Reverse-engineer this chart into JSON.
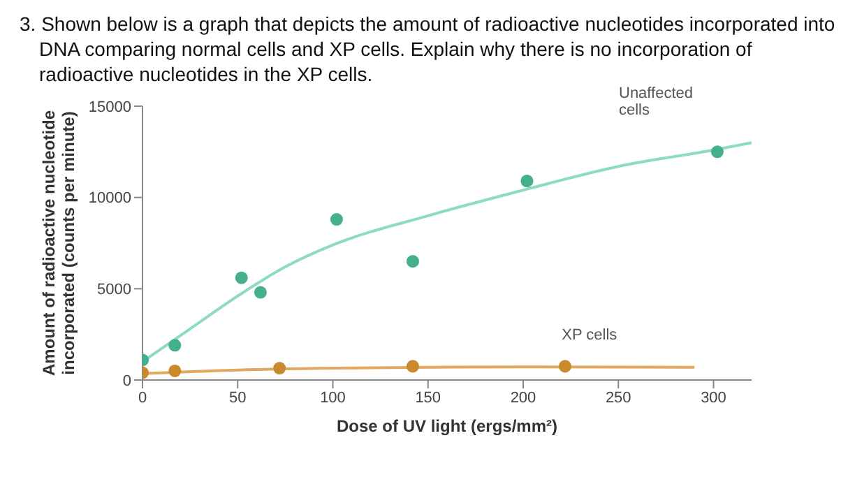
{
  "chart_data": {
    "type": "scatter",
    "title": "3. Shown below is a graph that depicts the amount of radioactive nucleotides incorporated into DNA comparing normal cells and XP cells. Explain why there is no incorporation of radioactive nucleotides in the XP cells.",
    "xlabel": "Dose of UV light (ergs/mm²)",
    "ylabel": "Amount of radioactive nucleotide incorporated (counts per minute)",
    "xlim": [
      0,
      320
    ],
    "xticks": [
      0,
      50,
      100,
      150,
      200,
      250,
      300
    ],
    "ylim": [
      0,
      15000
    ],
    "yticks": [
      0,
      5000,
      10000,
      15000
    ],
    "grid": false,
    "legend": false,
    "series": [
      {
        "type": "line",
        "name": "Unaffected cells",
        "color": "#8edcc0",
        "marker": "none",
        "x": [
          0,
          25,
          50,
          75,
          100,
          150,
          200,
          250,
          300,
          320
        ],
        "values": [
          1000,
          2800,
          4600,
          6200,
          7400,
          9000,
          10400,
          11700,
          12600,
          13000
        ]
      },
      {
        "type": "line",
        "name": "XP cells",
        "color": "#e2a862",
        "marker": "none",
        "x": [
          0,
          50,
          100,
          150,
          200,
          290
        ],
        "values": [
          350,
          550,
          650,
          700,
          720,
          700
        ]
      },
      {
        "type": "scatter",
        "color": "#45b08f",
        "marker": "circle",
        "x": [
          0,
          17,
          52,
          62,
          102,
          142,
          202,
          302
        ],
        "values": [
          1100,
          1900,
          5600,
          4800,
          8800,
          6500,
          10900,
          12500
        ]
      },
      {
        "type": "scatter",
        "color": "#c98a2e",
        "marker": "circle",
        "x": [
          0,
          17,
          72,
          142,
          222
        ],
        "values": [
          400,
          500,
          650,
          750,
          750
        ]
      }
    ]
  }
}
